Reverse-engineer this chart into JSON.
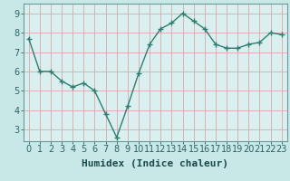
{
  "x": [
    0,
    1,
    2,
    3,
    4,
    5,
    6,
    7,
    8,
    9,
    10,
    11,
    12,
    13,
    14,
    15,
    16,
    17,
    18,
    19,
    20,
    21,
    22,
    23
  ],
  "y": [
    7.7,
    6.0,
    6.0,
    5.5,
    5.2,
    5.4,
    5.0,
    3.8,
    2.6,
    4.2,
    5.9,
    7.4,
    8.2,
    8.5,
    9.0,
    8.6,
    8.2,
    7.4,
    7.2,
    7.2,
    7.4,
    7.5,
    8.0,
    7.9
  ],
  "line_color": "#2e7d6e",
  "marker": "+",
  "bg_color": "#c8e8e8",
  "plot_bg_color": "#daf0f0",
  "grid_color": "#d8a8a8",
  "xlabel": "Humidex (Indice chaleur)",
  "ylim": [
    2.4,
    9.5
  ],
  "yticks": [
    3,
    4,
    5,
    6,
    7,
    8,
    9
  ],
  "xticks": [
    0,
    1,
    2,
    3,
    4,
    5,
    6,
    7,
    8,
    9,
    10,
    11,
    12,
    13,
    14,
    15,
    16,
    17,
    18,
    19,
    20,
    21,
    22,
    23
  ],
  "xlabel_fontsize": 8,
  "tick_fontsize": 7,
  "axis_color": "#7aabab",
  "spine_color": "#6a9a9a"
}
